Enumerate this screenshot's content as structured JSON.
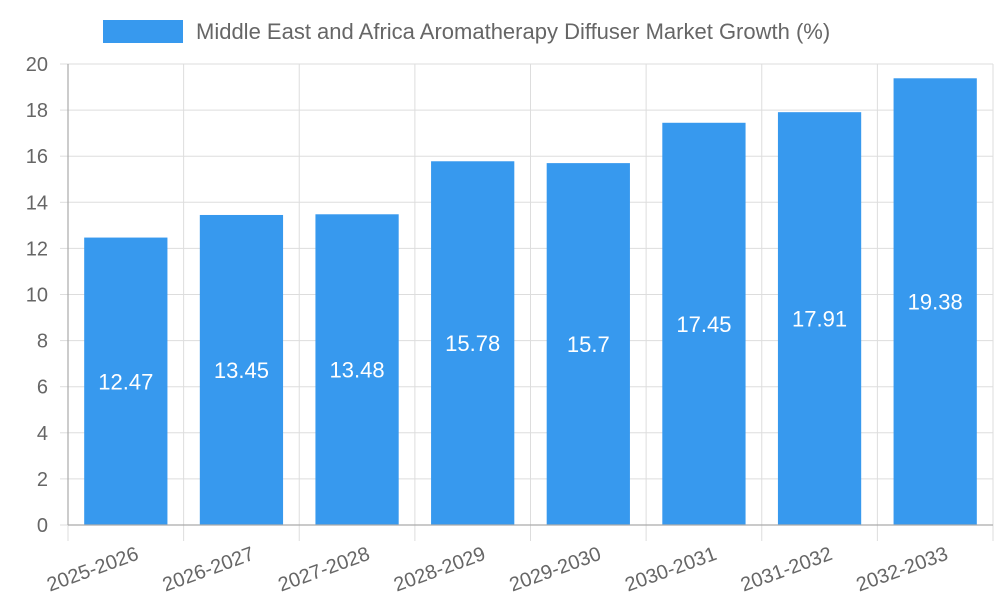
{
  "chart_data": {
    "type": "bar",
    "title": "",
    "xlabel": "",
    "ylabel": "",
    "categories": [
      "2025-2026",
      "2026-2027",
      "2027-2028",
      "2028-2029",
      "2029-2030",
      "2030-2031",
      "2031-2032",
      "2032-2033"
    ],
    "series": [
      {
        "name": "Middle East and Africa Aromatherapy Diffuser Market Growth (%)",
        "values": [
          12.47,
          13.45,
          13.48,
          15.78,
          15.7,
          17.45,
          17.91,
          19.38
        ],
        "color": "#3799ee"
      }
    ],
    "ylim": [
      0,
      20
    ],
    "yticks": [
      0,
      2,
      4,
      6,
      8,
      10,
      12,
      14,
      16,
      18,
      20
    ],
    "legend_position": "top",
    "grid": true
  }
}
